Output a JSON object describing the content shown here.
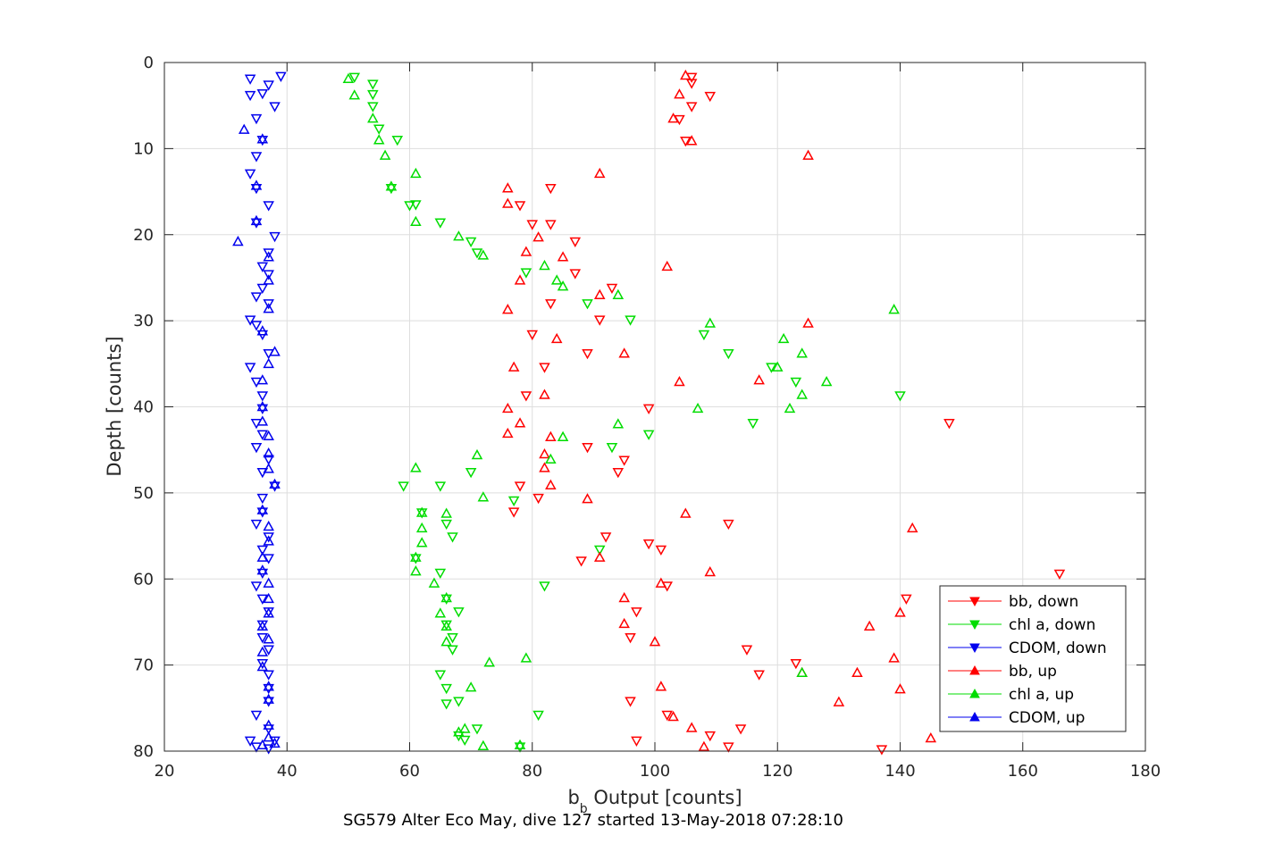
{
  "chart_data": {
    "type": "scatter",
    "xlabel_main": "b",
    "xlabel_sub": "b",
    "xlabel_rest": " Output [counts]",
    "ylabel": "Depth [counts]",
    "caption": "SG579 Alter Eco May, dive 127 started 13-May-2018 07:28:10",
    "xlim": [
      20,
      180
    ],
    "ylim": [
      0,
      80
    ],
    "y_reversed": true,
    "xticks": [
      20,
      40,
      60,
      80,
      100,
      120,
      140,
      160,
      180
    ],
    "yticks": [
      0,
      10,
      20,
      30,
      40,
      50,
      60,
      70,
      80
    ],
    "grid": true,
    "legend_position": "lower-right",
    "series": [
      {
        "name": "bb, down",
        "color": "#ff0000",
        "marker": "triangle-down",
        "points": [
          [
            106,
            1.7
          ],
          [
            106,
            2.4
          ],
          [
            109,
            3.9
          ],
          [
            106,
            5.1
          ],
          [
            104,
            6.6
          ],
          [
            105,
            9.1
          ],
          [
            83,
            14.6
          ],
          [
            78,
            16.6
          ],
          [
            80,
            18.8
          ],
          [
            83,
            18.8
          ],
          [
            87,
            20.8
          ],
          [
            87,
            24.5
          ],
          [
            93,
            26.2
          ],
          [
            83,
            28
          ],
          [
            91,
            29.9
          ],
          [
            80,
            31.6
          ],
          [
            89,
            33.8
          ],
          [
            82,
            35.4
          ],
          [
            79,
            38.7
          ],
          [
            99,
            40.2
          ],
          [
            148,
            41.9
          ],
          [
            89,
            44.7
          ],
          [
            95,
            46.2
          ],
          [
            94,
            47.6
          ],
          [
            78,
            49.2
          ],
          [
            81,
            50.6
          ],
          [
            77,
            52.2
          ],
          [
            112,
            53.6
          ],
          [
            92,
            55.1
          ],
          [
            99,
            55.9
          ],
          [
            101,
            56.6
          ],
          [
            88,
            57.9
          ],
          [
            166,
            59.4
          ],
          [
            102,
            60.8
          ],
          [
            141,
            62.3
          ],
          [
            97,
            63.8
          ],
          [
            96,
            66.8
          ],
          [
            115,
            68.2
          ],
          [
            123,
            69.8
          ],
          [
            117,
            71.1
          ],
          [
            96,
            74.2
          ],
          [
            102,
            75.8
          ],
          [
            109,
            78.2
          ],
          [
            114,
            77.4
          ],
          [
            97,
            78.8
          ],
          [
            112,
            79.5
          ],
          [
            137,
            79.8
          ]
        ]
      },
      {
        "name": "chl a, down",
        "color": "#00dd00",
        "marker": "triangle-down",
        "points": [
          [
            51,
            1.7
          ],
          [
            54,
            2.5
          ],
          [
            54,
            3.7
          ],
          [
            54,
            5.1
          ],
          [
            55,
            7.7
          ],
          [
            58,
            9.0
          ],
          [
            57,
            14.6
          ],
          [
            61,
            16.5
          ],
          [
            60,
            16.6
          ],
          [
            65,
            18.6
          ],
          [
            70,
            20.8
          ],
          [
            71,
            22.1
          ],
          [
            79,
            24.4
          ],
          [
            89,
            28
          ],
          [
            96,
            29.9
          ],
          [
            108,
            31.6
          ],
          [
            112,
            33.8
          ],
          [
            119,
            35.4
          ],
          [
            123,
            37.1
          ],
          [
            140,
            38.7
          ],
          [
            116,
            41.9
          ],
          [
            99,
            43.2
          ],
          [
            93,
            44.7
          ],
          [
            70,
            47.6
          ],
          [
            59,
            49.2
          ],
          [
            65,
            49.2
          ],
          [
            77,
            50.9
          ],
          [
            62,
            52.3
          ],
          [
            66,
            53.6
          ],
          [
            67,
            55.1
          ],
          [
            91,
            56.6
          ],
          [
            61,
            57.6
          ],
          [
            65,
            59.3
          ],
          [
            82,
            60.8
          ],
          [
            66,
            62.3
          ],
          [
            68,
            63.8
          ],
          [
            66,
            65.3
          ],
          [
            67,
            66.8
          ],
          [
            67,
            68.2
          ],
          [
            65,
            71.1
          ],
          [
            66,
            72.7
          ],
          [
            68,
            74.2
          ],
          [
            66,
            74.5
          ],
          [
            81,
            75.8
          ],
          [
            71,
            77.4
          ],
          [
            68,
            78.2
          ],
          [
            69,
            78.7
          ],
          [
            78,
            79.5
          ]
        ]
      },
      {
        "name": "CDOM, down",
        "color": "#0000ee",
        "marker": "triangle-down",
        "points": [
          [
            39,
            1.6
          ],
          [
            34,
            1.9
          ],
          [
            37,
            2.6
          ],
          [
            36,
            3.6
          ],
          [
            34,
            3.8
          ],
          [
            38,
            5.1
          ],
          [
            35,
            6.5
          ],
          [
            36,
            9.0
          ],
          [
            35,
            10.9
          ],
          [
            34,
            12.9
          ],
          [
            35,
            14.6
          ],
          [
            37,
            16.6
          ],
          [
            35,
            18.6
          ],
          [
            38,
            20.2
          ],
          [
            37,
            22.1
          ],
          [
            36,
            23.7
          ],
          [
            37,
            24.6
          ],
          [
            36,
            26.2
          ],
          [
            35,
            27.2
          ],
          [
            37,
            28
          ],
          [
            34,
            29.9
          ],
          [
            35,
            30.5
          ],
          [
            36,
            31.6
          ],
          [
            37,
            33.8
          ],
          [
            34,
            35.4
          ],
          [
            35,
            37.1
          ],
          [
            36,
            38.7
          ],
          [
            36,
            40.2
          ],
          [
            35,
            41.9
          ],
          [
            36,
            43.2
          ],
          [
            35,
            44.7
          ],
          [
            37,
            46.1
          ],
          [
            36,
            47.6
          ],
          [
            38,
            49.2
          ],
          [
            36,
            50.6
          ],
          [
            36,
            52.2
          ],
          [
            35,
            53.6
          ],
          [
            37,
            55.1
          ],
          [
            36,
            56.6
          ],
          [
            37,
            57.6
          ],
          [
            36,
            59.3
          ],
          [
            35,
            60.8
          ],
          [
            36,
            62.3
          ],
          [
            37,
            63.8
          ],
          [
            36,
            65.3
          ],
          [
            36,
            66.8
          ],
          [
            37,
            68.2
          ],
          [
            36,
            69.8
          ],
          [
            37,
            71.1
          ],
          [
            37,
            72.7
          ],
          [
            37,
            74.2
          ],
          [
            35,
            75.8
          ],
          [
            37,
            77.4
          ],
          [
            34,
            78.8
          ],
          [
            38,
            78.8
          ],
          [
            35,
            79.5
          ],
          [
            37,
            79.7
          ]
        ]
      },
      {
        "name": "bb, up",
        "color": "#ff0000",
        "marker": "triangle-up",
        "points": [
          [
            105,
            1.5
          ],
          [
            104,
            3.7
          ],
          [
            103,
            6.5
          ],
          [
            106,
            9.1
          ],
          [
            125,
            10.8
          ],
          [
            91,
            12.9
          ],
          [
            76,
            14.6
          ],
          [
            76,
            16.4
          ],
          [
            81,
            20.3
          ],
          [
            79,
            22
          ],
          [
            85,
            22.6
          ],
          [
            102,
            23.7
          ],
          [
            78,
            25.3
          ],
          [
            91,
            27
          ],
          [
            76,
            28.7
          ],
          [
            125,
            30.3
          ],
          [
            84,
            32.1
          ],
          [
            95,
            33.8
          ],
          [
            77,
            35.4
          ],
          [
            104,
            37.1
          ],
          [
            117,
            36.9
          ],
          [
            82,
            38.6
          ],
          [
            76,
            40.2
          ],
          [
            78,
            41.9
          ],
          [
            76,
            43.1
          ],
          [
            83,
            43.5
          ],
          [
            82,
            45.5
          ],
          [
            82,
            47.1
          ],
          [
            83,
            49.1
          ],
          [
            89,
            50.7
          ],
          [
            105,
            52.4
          ],
          [
            142,
            54.1
          ],
          [
            91,
            57.5
          ],
          [
            109,
            59.2
          ],
          [
            101,
            60.5
          ],
          [
            95,
            62.2
          ],
          [
            140,
            63.9
          ],
          [
            95,
            65.2
          ],
          [
            135,
            65.5
          ],
          [
            100,
            67.3
          ],
          [
            139,
            69.2
          ],
          [
            133,
            70.9
          ],
          [
            124,
            70.9
          ],
          [
            101,
            72.5
          ],
          [
            140,
            72.8
          ],
          [
            130,
            74.3
          ],
          [
            103,
            76
          ],
          [
            106,
            77.3
          ],
          [
            145,
            78.5
          ],
          [
            108,
            79.5
          ]
        ]
      },
      {
        "name": "chl a, up",
        "color": "#00dd00",
        "marker": "triangle-up",
        "points": [
          [
            50,
            1.9
          ],
          [
            51,
            3.8
          ],
          [
            54,
            6.5
          ],
          [
            55,
            9.0
          ],
          [
            56,
            10.8
          ],
          [
            61,
            12.9
          ],
          [
            57,
            14.4
          ],
          [
            61,
            18.5
          ],
          [
            68,
            20.2
          ],
          [
            72,
            22.4
          ],
          [
            82,
            23.6
          ],
          [
            84,
            25.3
          ],
          [
            85,
            26
          ],
          [
            94,
            27
          ],
          [
            139,
            28.7
          ],
          [
            109,
            30.3
          ],
          [
            121,
            32.1
          ],
          [
            124,
            33.8
          ],
          [
            120,
            35.4
          ],
          [
            128,
            37.1
          ],
          [
            124,
            38.6
          ],
          [
            122,
            40.2
          ],
          [
            107,
            40.2
          ],
          [
            94,
            42.0
          ],
          [
            85,
            43.5
          ],
          [
            71,
            45.6
          ],
          [
            83,
            46.1
          ],
          [
            61,
            47.1
          ],
          [
            72,
            50.5
          ],
          [
            62,
            52.3
          ],
          [
            66,
            52.4
          ],
          [
            62,
            54.1
          ],
          [
            62,
            55.8
          ],
          [
            61,
            57.5
          ],
          [
            61,
            59.1
          ],
          [
            64,
            60.5
          ],
          [
            66,
            62.2
          ],
          [
            65,
            64.0
          ],
          [
            66,
            65.5
          ],
          [
            66,
            67.3
          ],
          [
            73,
            69.7
          ],
          [
            79,
            69.2
          ],
          [
            124,
            70.9
          ],
          [
            70,
            72.6
          ],
          [
            69,
            77.4
          ],
          [
            68,
            77.8
          ],
          [
            72,
            79.4
          ],
          [
            78,
            79.3
          ]
        ]
      },
      {
        "name": "CDOM, up",
        "color": "#0000ee",
        "marker": "triangle-up",
        "points": [
          [
            33,
            7.8
          ],
          [
            36,
            8.9
          ],
          [
            35,
            14.3
          ],
          [
            35,
            18.4
          ],
          [
            32,
            20.8
          ],
          [
            37,
            22.6
          ],
          [
            37,
            25.3
          ],
          [
            37,
            28.6
          ],
          [
            36,
            31.2
          ],
          [
            38,
            33.6
          ],
          [
            37,
            35
          ],
          [
            36,
            36.9
          ],
          [
            36,
            40
          ],
          [
            36,
            41.7
          ],
          [
            37,
            43.4
          ],
          [
            37,
            45.4
          ],
          [
            37,
            47.2
          ],
          [
            38,
            49
          ],
          [
            36,
            52
          ],
          [
            37,
            53.9
          ],
          [
            37,
            55.6
          ],
          [
            36,
            57.5
          ],
          [
            36,
            59
          ],
          [
            37,
            60.5
          ],
          [
            37,
            62.3
          ],
          [
            37,
            64
          ],
          [
            36,
            65.5
          ],
          [
            37,
            67
          ],
          [
            36,
            68.5
          ],
          [
            36,
            70.2
          ],
          [
            37,
            72.5
          ],
          [
            37,
            74
          ],
          [
            37,
            77
          ],
          [
            38,
            79.1
          ],
          [
            37,
            78.4
          ],
          [
            36,
            79.3
          ]
        ]
      }
    ]
  }
}
